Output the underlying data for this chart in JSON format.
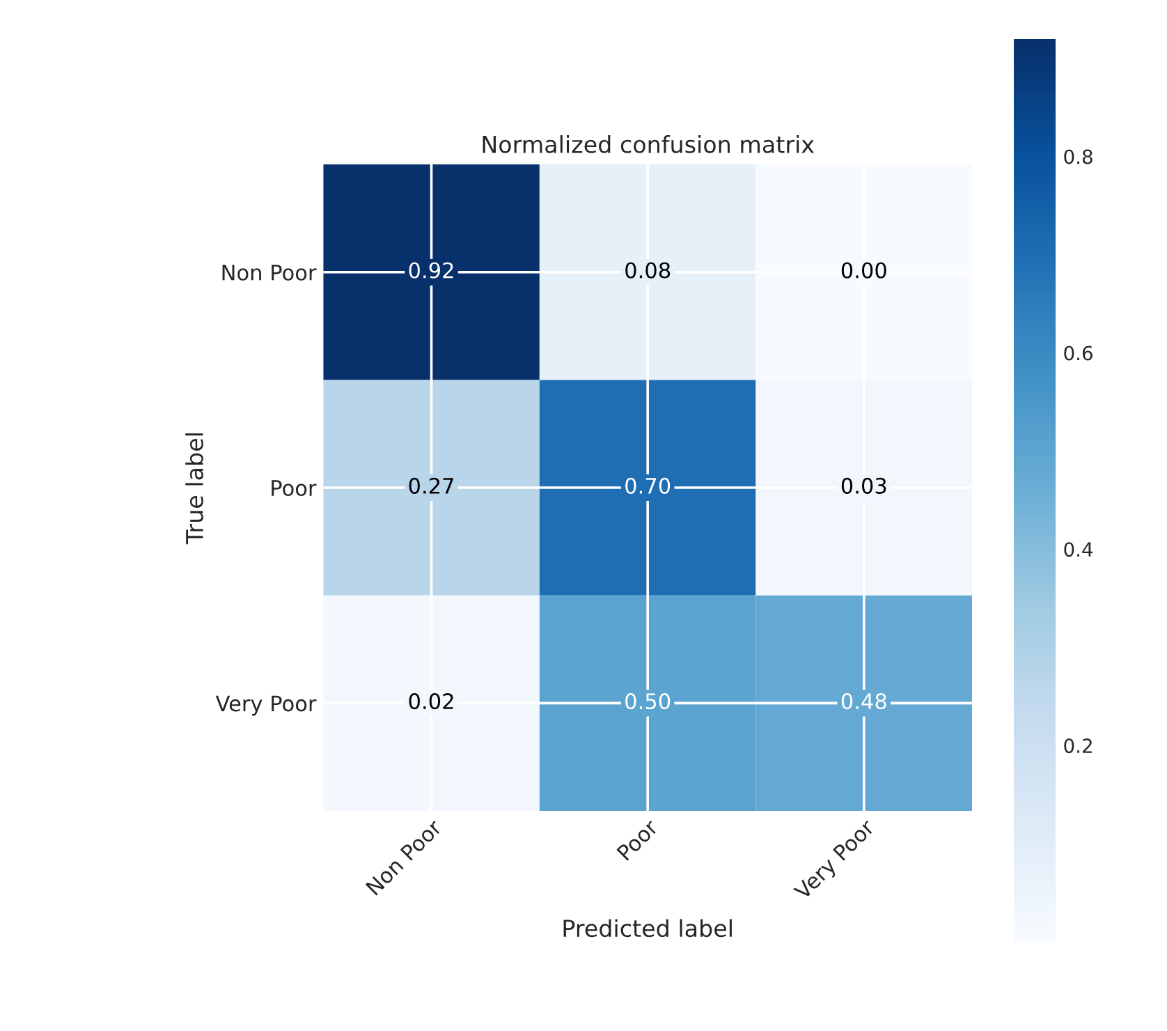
{
  "chart_data": {
    "type": "heatmap",
    "title": "Normalized confusion matrix",
    "xlabel": "Predicted label",
    "ylabel": "True label",
    "categories": [
      "Non Poor",
      "Poor",
      "Very Poor"
    ],
    "y_categories": [
      "Non Poor",
      "Poor",
      "Very Poor"
    ],
    "cells": [
      [
        0.92,
        0.08,
        0.0
      ],
      [
        0.27,
        0.7,
        0.03
      ],
      [
        0.02,
        0.5,
        0.48
      ]
    ],
    "cell_labels": [
      [
        "0.92",
        "0.08",
        "0.00"
      ],
      [
        "0.27",
        "0.70",
        "0.03"
      ],
      [
        "0.02",
        "0.50",
        "0.48"
      ]
    ],
    "clim": [
      0.0,
      0.92
    ],
    "cticks": [
      {
        "value": 0.2,
        "label": "0.2"
      },
      {
        "value": 0.4,
        "label": "0.4"
      },
      {
        "value": 0.6,
        "label": "0.6"
      },
      {
        "value": 0.8,
        "label": "0.8"
      }
    ],
    "grid": true,
    "data_labels": true
  }
}
